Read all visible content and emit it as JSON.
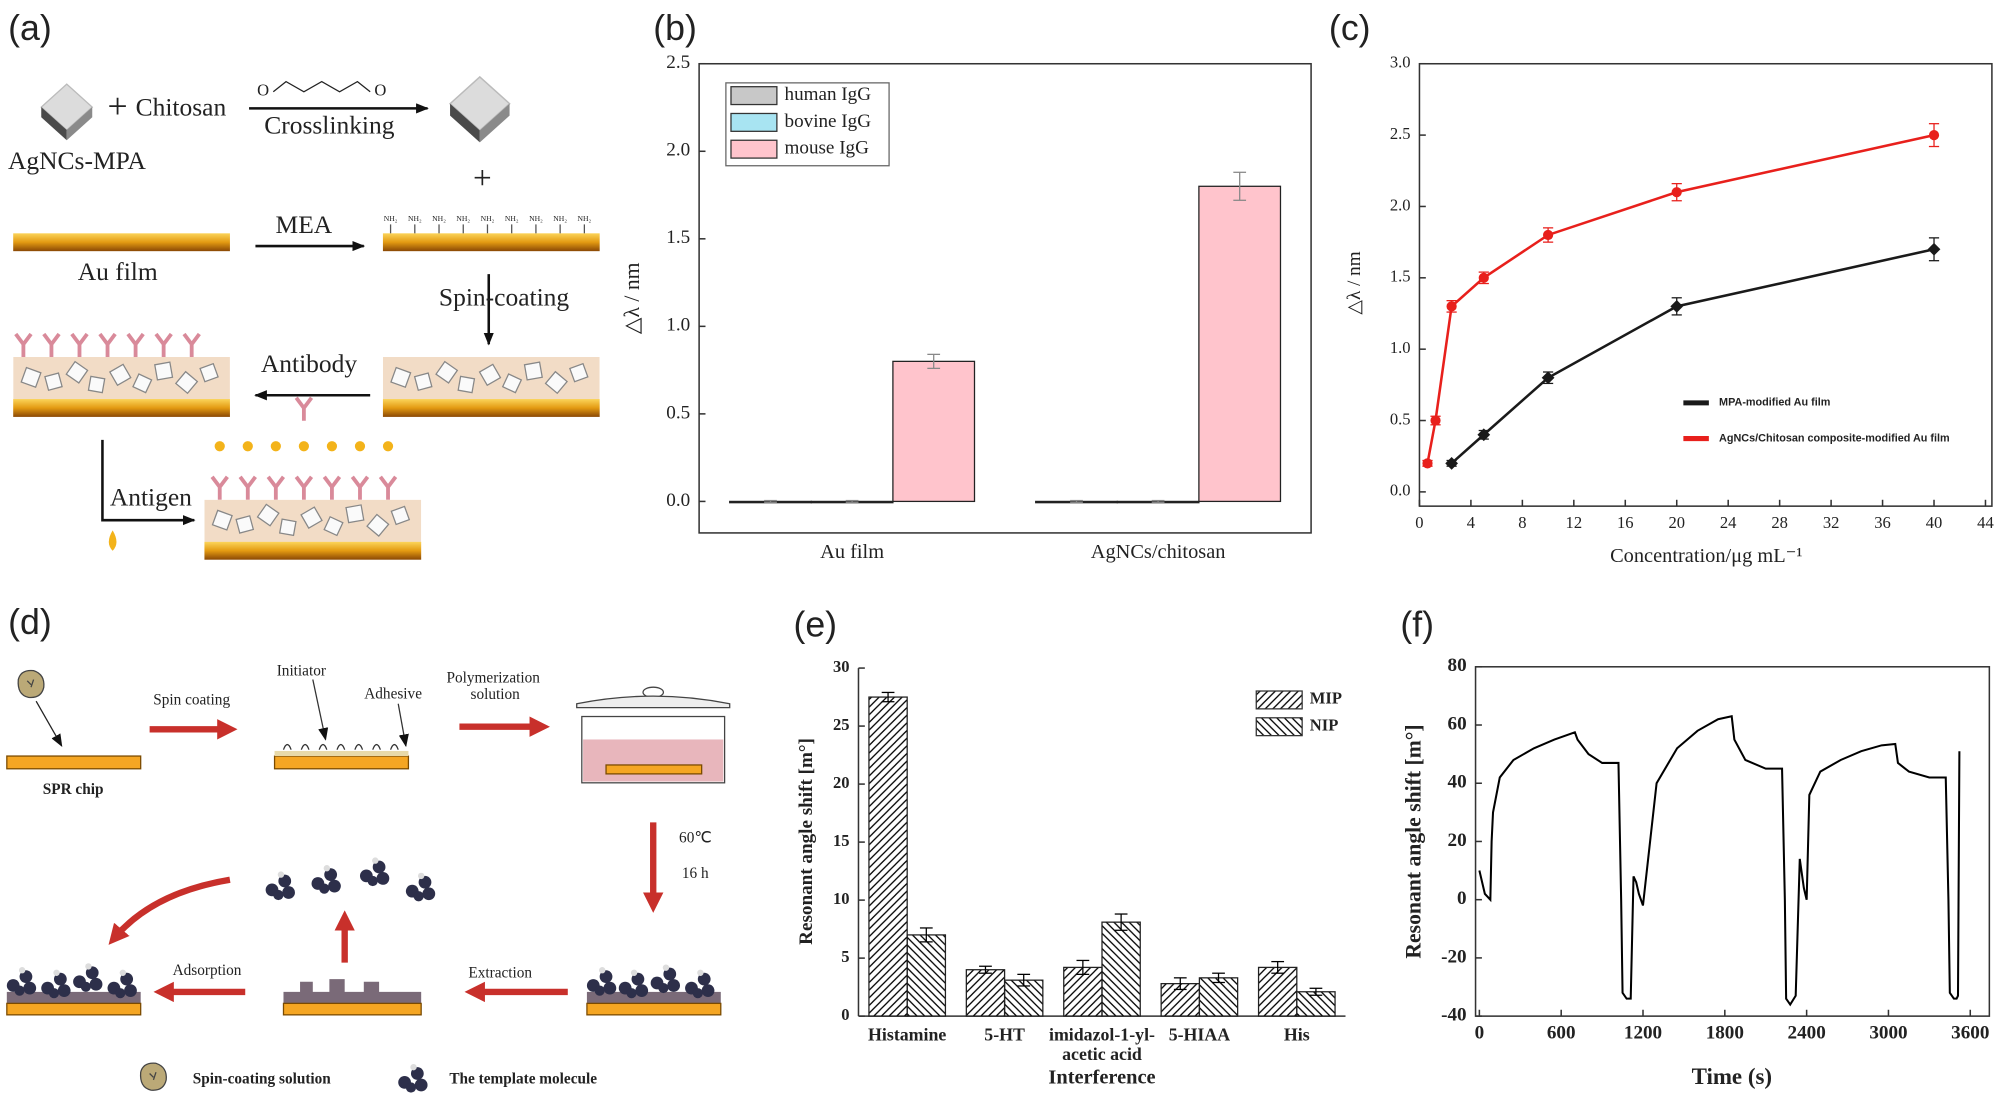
{
  "panel_labels": [
    "(a)",
    "(b)",
    "(c)",
    "(d)",
    "(e)",
    "(f)"
  ],
  "diagram_a": {
    "precursor": "AgNCs-MPA",
    "plus": "+",
    "reagent": "Chitosan",
    "aldehyde_o": "O",
    "step_crosslink": "Crosslinking",
    "step_mea": "MEA",
    "substrate": "Au film",
    "amine": "NH₂",
    "step_spin": "Spin-coating",
    "step_antibody": "Antibody",
    "step_antigen": "Antigen"
  },
  "diagram_d": {
    "chip": "SPR chip",
    "step_spin": "Spin coating",
    "initiator": "Initiator",
    "adhesive": "Adhesive",
    "step_polymerization": "Polymerization solution",
    "temperature": "60℃",
    "duration": "16 h",
    "step_extraction": "Extraction",
    "step_adsorption": "Adsorption",
    "legend_solution": "Spin-coating solution",
    "legend_template": "The template molecule"
  },
  "chart_data": [
    {
      "type": "bar",
      "ylabel": "△λ / nm",
      "categories": [
        "Au film",
        "AgNCs/chitosan"
      ],
      "series": [
        {
          "name": "human IgG",
          "color": "#c8c8c8",
          "values": [
            0,
            0
          ],
          "errors": [
            0.005,
            0.005
          ]
        },
        {
          "name": "bovine IgG",
          "color": "#a8e4f2",
          "values": [
            0,
            0
          ],
          "errors": [
            0.005,
            0.005
          ]
        },
        {
          "name": "mouse IgG",
          "color": "#ffc4cc",
          "values": [
            0.8,
            1.8
          ],
          "errors": [
            0.04,
            0.08
          ]
        }
      ],
      "ylim": [
        -0.18,
        2.5
      ],
      "yticks": [
        {
          "value": 0,
          "label": "0.0"
        },
        {
          "value": 0.5,
          "label": "0.5"
        },
        {
          "value": 1,
          "label": "1.0"
        },
        {
          "value": 1.5,
          "label": "1.5"
        },
        {
          "value": 2,
          "label": "2.0"
        },
        {
          "value": 2.5,
          "label": "2.5"
        }
      ],
      "legend": "upper left"
    },
    {
      "type": "line",
      "xlabel": "Concentration/μg mL⁻¹",
      "ylabel": "△λ / nm",
      "series": [
        {
          "name": "MPA-modified Au film",
          "color": "#1a1a1a",
          "marker": "diamond",
          "x": [
            2.5,
            5,
            10,
            20,
            40
          ],
          "values": [
            0.2,
            0.4,
            0.8,
            1.3,
            1.7
          ],
          "errors": [
            0.02,
            0.03,
            0.04,
            0.06,
            0.08
          ]
        },
        {
          "name": "AgNCs/Chitosan composite-modified Au film",
          "color": "#e8201c",
          "marker": "circle",
          "x": [
            0.625,
            1.25,
            2.5,
            5,
            10,
            20,
            40
          ],
          "values": [
            0.2,
            0.5,
            1.3,
            1.5,
            1.8,
            2.1,
            2.5
          ],
          "errors": [
            0.02,
            0.03,
            0.04,
            0.04,
            0.05,
            0.06,
            0.08
          ]
        }
      ],
      "xlim": [
        0,
        44.5
      ],
      "xticks": [
        0,
        4,
        8,
        12,
        16,
        20,
        24,
        28,
        32,
        36,
        40,
        44
      ],
      "ylim": [
        -0.1,
        3
      ],
      "yticks": [
        {
          "value": 0,
          "label": "0.0"
        },
        {
          "value": 0.5,
          "label": "0.5"
        },
        {
          "value": 1,
          "label": "1.0"
        },
        {
          "value": 1.5,
          "label": "1.5"
        },
        {
          "value": 2,
          "label": "2.0"
        },
        {
          "value": 2.5,
          "label": "2.5"
        },
        {
          "value": 3,
          "label": "3.0"
        }
      ],
      "legend": "lower right"
    },
    {
      "type": "bar",
      "xlabel": "Interference",
      "ylabel": "Resonant angle shift [m°]",
      "categories": [
        "Histamine",
        "5-HT",
        "imidazol-1-yl-acetic acid",
        "5-HIAA",
        "His"
      ],
      "series": [
        {
          "name": "MIP",
          "color": "#000000",
          "hatch": "forward",
          "values": [
            27.5,
            4,
            4.2,
            2.8,
            4.2
          ],
          "errors": [
            0.4,
            0.3,
            0.6,
            0.5,
            0.5
          ]
        },
        {
          "name": "NIP",
          "color": "#000000",
          "hatch": "backward",
          "values": [
            7,
            3.1,
            8.1,
            3.3,
            2.1
          ],
          "errors": [
            0.6,
            0.5,
            0.7,
            0.4,
            0.3
          ]
        }
      ],
      "ylim": [
        0,
        30
      ],
      "yticks": [
        0,
        5,
        10,
        15,
        20,
        25,
        30
      ],
      "legend": "upper right"
    },
    {
      "type": "line",
      "xlabel": "Time (s)",
      "ylabel": "Resonant angle shift [m°]",
      "x": [
        0,
        40,
        80,
        90,
        100,
        150,
        250,
        400,
        550,
        700,
        720,
        800,
        900,
        1020,
        1040,
        1050,
        1080,
        1110,
        1130,
        1150,
        1170,
        1200,
        1300,
        1450,
        1600,
        1750,
        1850,
        1870,
        1950,
        2100,
        2220,
        2240,
        2250,
        2280,
        2320,
        2350,
        2380,
        2400,
        2420,
        2500,
        2650,
        2800,
        2950,
        3050,
        3070,
        3150,
        3300,
        3420,
        3440,
        3450,
        3480,
        3500,
        3510,
        3520
      ],
      "series": [
        {
          "color": "#000000",
          "values": [
            10,
            2,
            0,
            20,
            30,
            42,
            48,
            52,
            55,
            57.5,
            55,
            50,
            47,
            47,
            0,
            -32,
            -34,
            -34,
            8,
            6,
            2,
            -2,
            40,
            52,
            58,
            62,
            63,
            55,
            48,
            45,
            45,
            0,
            -34,
            -36,
            -33,
            14,
            4,
            0,
            36,
            44,
            48,
            51,
            53,
            53.5,
            47,
            44,
            42,
            42,
            0,
            -32,
            -34,
            -34,
            -33,
            51
          ]
        }
      ],
      "xlim": [
        -28,
        3740
      ],
      "xticks": [
        0,
        600,
        1200,
        1800,
        2400,
        3000,
        3600
      ],
      "ylim": [
        -40,
        80
      ],
      "yticks": [
        -40,
        -20,
        0,
        20,
        40,
        60,
        80
      ]
    }
  ]
}
